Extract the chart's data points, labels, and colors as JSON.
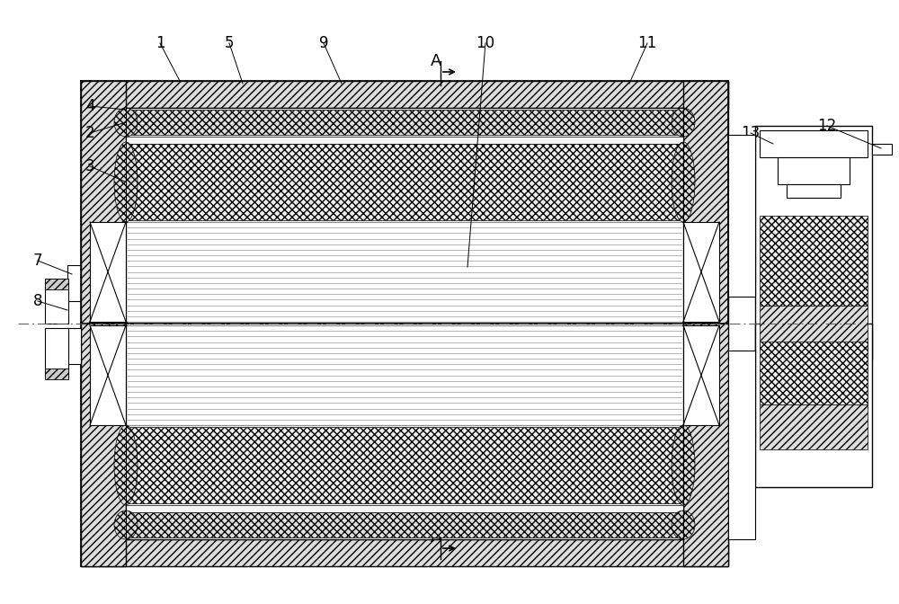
{
  "fig_width": 10.0,
  "fig_height": 6.72,
  "bg": "#ffffff",
  "lc": "#000000",
  "gray_hatch": "#cccccc",
  "light_gray": "#e8e8e8",
  "white": "#ffffff"
}
